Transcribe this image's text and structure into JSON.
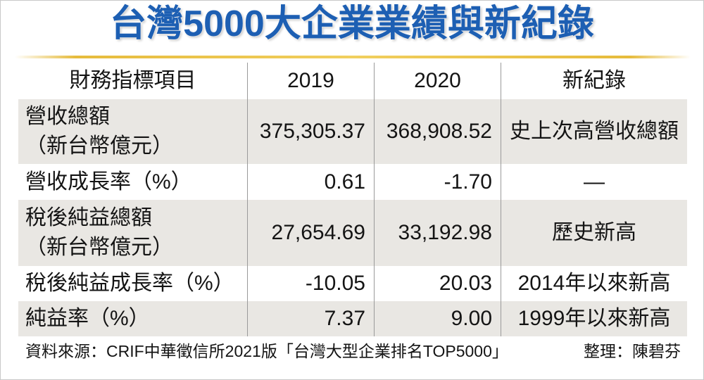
{
  "colors": {
    "title": "#1d5fb3",
    "accent_rule": "#e6bb3c",
    "row_shade": "#e9e7e3",
    "text": "#141414",
    "grid_line": "#9a9a9a"
  },
  "chart_data": {
    "type": "table",
    "title": "台灣5000大企業業績與新紀錄",
    "columns": [
      "財務指標項目",
      "2019",
      "2020",
      "新紀錄"
    ],
    "rows": [
      {
        "label": "營收總額",
        "unit": "（新台幣億元）",
        "values": [
          "375,305.37",
          "368,908.52"
        ],
        "record": "史上次高營收總額"
      },
      {
        "label": "營收成長率（%）",
        "values": [
          "0.61",
          "-1.70"
        ],
        "record": "—"
      },
      {
        "label": "稅後純益總額",
        "unit": "（新台幣億元）",
        "values": [
          "27,654.69",
          "33,192.98"
        ],
        "record": "歷史新高"
      },
      {
        "label": "稅後純益成長率（%）",
        "values": [
          "-10.05",
          "20.03"
        ],
        "record": "2014年以來新高"
      },
      {
        "label": "純益率（%）",
        "values": [
          "7.37",
          "9.00"
        ],
        "record": "1999年以來新高"
      }
    ]
  },
  "footer": {
    "source": "資料來源：CRIF中華徵信所2021版「台灣大型企業排名TOP5000」",
    "credit": "整理：陳碧芬"
  }
}
